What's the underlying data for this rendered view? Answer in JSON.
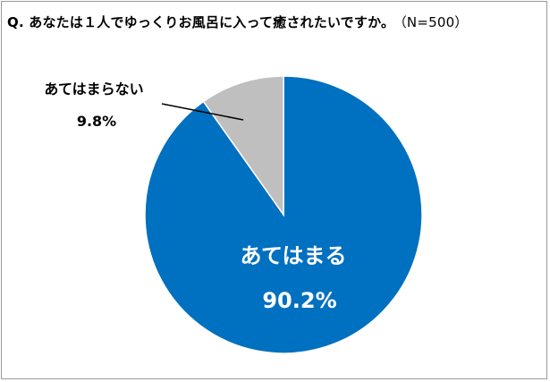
{
  "question": {
    "text": "Q. あなたは１人でゆっくりお風呂に入って癒されたいですか。",
    "sample": "（N=500）"
  },
  "chart_data": {
    "type": "pie",
    "slices": [
      {
        "label": "あてはまる",
        "value": 90.2,
        "display": "90.2%",
        "color": "#0070C0"
      },
      {
        "label": "あてはまらない",
        "value": 9.8,
        "display": "9.8%",
        "color": "#BFBFBF"
      }
    ]
  }
}
